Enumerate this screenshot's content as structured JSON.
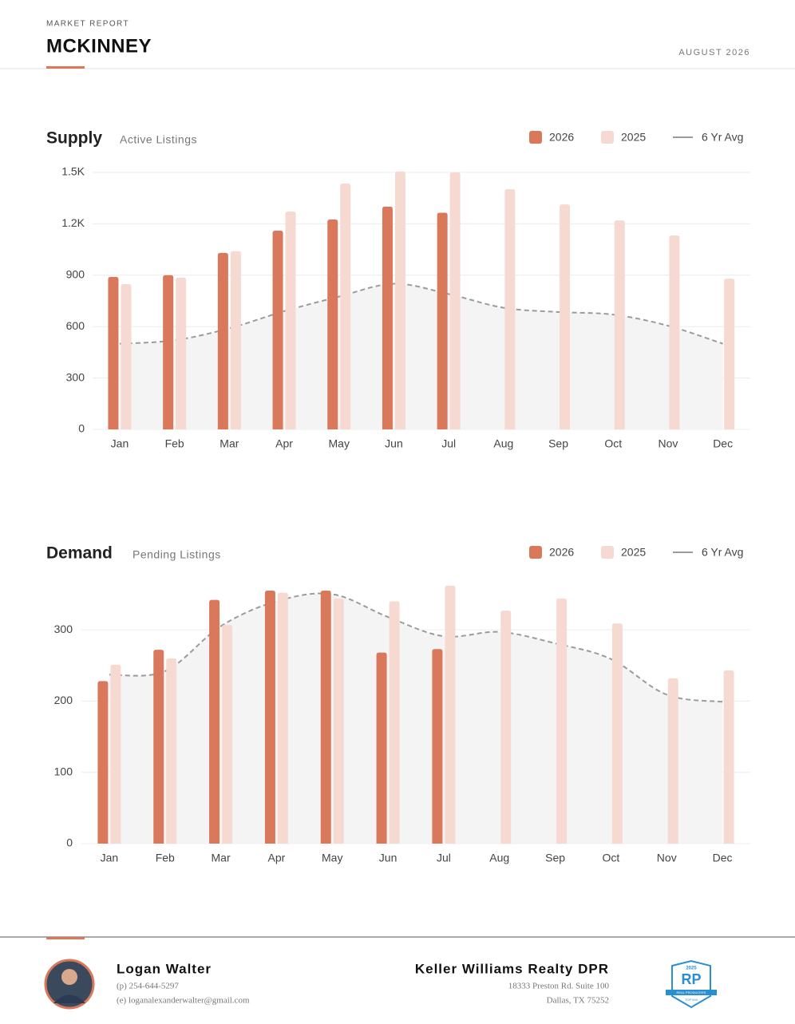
{
  "header": {
    "kicker": "MARKET REPORT",
    "title": "MCKINNEY",
    "date": "AUGUST 2026"
  },
  "chart_data": [
    {
      "type": "bar",
      "title": "Supply",
      "subtitle": "Active Listings",
      "categories": [
        "Jan",
        "Feb",
        "Mar",
        "Apr",
        "May",
        "Jun",
        "Jul",
        "Aug",
        "Sep",
        "Oct",
        "Nov",
        "Dec"
      ],
      "series": [
        {
          "name": "2026",
          "type": "bar",
          "color": "#d9785a",
          "values": [
            890,
            900,
            1030,
            1160,
            1225,
            1300,
            1265,
            null,
            null,
            null,
            null,
            null
          ]
        },
        {
          "name": "2025",
          "type": "bar",
          "color": "#f6dad1",
          "values": [
            848,
            885,
            1040,
            1272,
            1435,
            1505,
            1500,
            1402,
            1313,
            1220,
            1132,
            880
          ]
        },
        {
          "name": "6 Yr Avg",
          "type": "line",
          "dashed": true,
          "area": true,
          "color": "#9b9b9b",
          "values": [
            500,
            520,
            590,
            690,
            775,
            850,
            790,
            710,
            685,
            670,
            605,
            500
          ]
        }
      ],
      "ylim": [
        0,
        1500
      ],
      "yticks": [
        0,
        300,
        600,
        900,
        {
          "value": 1200,
          "label": "1.2K"
        },
        {
          "value": 1500,
          "label": "1.5K"
        }
      ],
      "grid": true
    },
    {
      "type": "bar",
      "title": "Demand",
      "subtitle": "Pending Listings",
      "categories": [
        "Jan",
        "Feb",
        "Mar",
        "Apr",
        "May",
        "Jun",
        "Jul",
        "Aug",
        "Sep",
        "Oct",
        "Nov",
        "Dec"
      ],
      "series": [
        {
          "name": "2026",
          "type": "bar",
          "color": "#d9785a",
          "values": [
            228,
            272,
            342,
            355,
            355,
            268,
            273,
            null,
            null,
            null,
            null,
            null
          ]
        },
        {
          "name": "2025",
          "type": "bar",
          "color": "#f6dad1",
          "values": [
            251,
            260,
            307,
            352,
            344,
            340,
            362,
            327,
            344,
            309,
            232,
            243
          ]
        },
        {
          "name": "6 Yr Avg",
          "type": "line",
          "dashed": true,
          "area": true,
          "color": "#9b9b9b",
          "values": [
            237,
            242,
            305,
            340,
            350,
            318,
            291,
            297,
            281,
            259,
            209,
            199
          ]
        }
      ],
      "ylim": [
        0,
        370
      ],
      "yticks": [
        0,
        100,
        200,
        300
      ],
      "grid": true
    }
  ],
  "footer": {
    "agent": {
      "name": "Logan Walter",
      "phone": "(p) 254-644-5297",
      "email": "(e) loganalexanderwalter@gmail.com"
    },
    "company": {
      "name": "Keller Williams Realty DPR",
      "address1": "18333 Preston Rd. Suite 100",
      "address2": "Dallas, TX 75252"
    },
    "badge": {
      "year": "2025",
      "logo": "RP",
      "line1": "REAL PRODUCERS",
      "line2": "TOP 500"
    }
  }
}
